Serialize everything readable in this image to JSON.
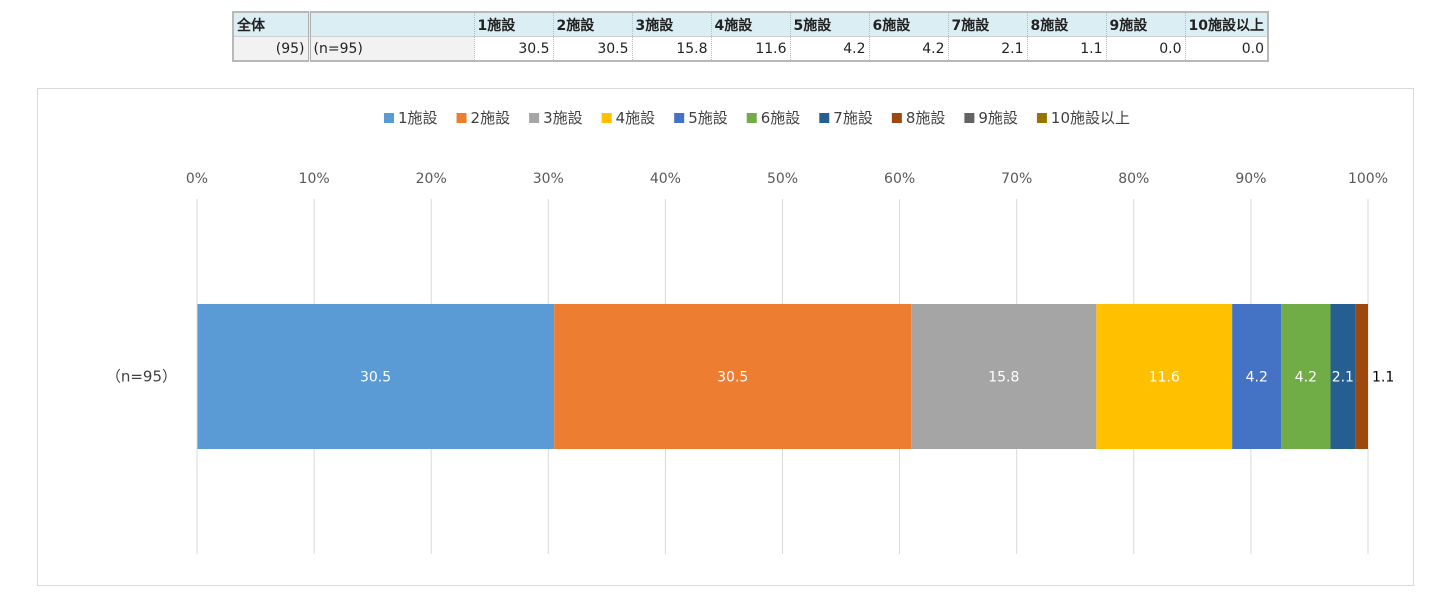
{
  "table": {
    "corner_label": "全体",
    "group_count": "(95)",
    "row_label": "(n=95)",
    "headers": [
      "1施設",
      "2施設",
      "3施設",
      "4施設",
      "5施設",
      "6施設",
      "7施設",
      "8施設",
      "9施設",
      "10施設以上"
    ],
    "values": [
      "30.5",
      "30.5",
      "15.8",
      "11.6",
      "4.2",
      "4.2",
      "2.1",
      "1.1",
      "0.0",
      "0.0"
    ]
  },
  "chart_data": {
    "type": "bar",
    "orientation": "horizontal-stacked-100",
    "categories": [
      "（n=95）"
    ],
    "series": [
      {
        "name": "1施設",
        "values": [
          30.5
        ],
        "color": "#5b9bd5"
      },
      {
        "name": "2施設",
        "values": [
          30.5
        ],
        "color": "#ed7d31"
      },
      {
        "name": "3施設",
        "values": [
          15.8
        ],
        "color": "#a5a5a5"
      },
      {
        "name": "4施設",
        "values": [
          11.6
        ],
        "color": "#ffc000"
      },
      {
        "name": "5施設",
        "values": [
          4.2
        ],
        "color": "#4472c4"
      },
      {
        "name": "6施設",
        "values": [
          4.2
        ],
        "color": "#70ad47"
      },
      {
        "name": "7施設",
        "values": [
          2.1
        ],
        "color": "#255e91"
      },
      {
        "name": "8施設",
        "values": [
          1.1
        ],
        "color": "#9e480e"
      },
      {
        "name": "9施設",
        "values": [
          0.0
        ],
        "color": "#636363"
      },
      {
        "name": "10施設以上",
        "values": [
          0.0
        ],
        "color": "#997300"
      }
    ],
    "segment_labels": [
      "30.5",
      "30.5",
      "15.8",
      "11.6",
      "4.2",
      "4.2",
      "2.1",
      "1.1"
    ],
    "x_ticks": [
      "0%",
      "10%",
      "20%",
      "30%",
      "40%",
      "50%",
      "60%",
      "70%",
      "80%",
      "90%",
      "100%"
    ],
    "xlim": [
      0,
      100
    ],
    "grid": true,
    "legend_position": "top",
    "title": "",
    "xlabel": "",
    "ylabel": ""
  }
}
